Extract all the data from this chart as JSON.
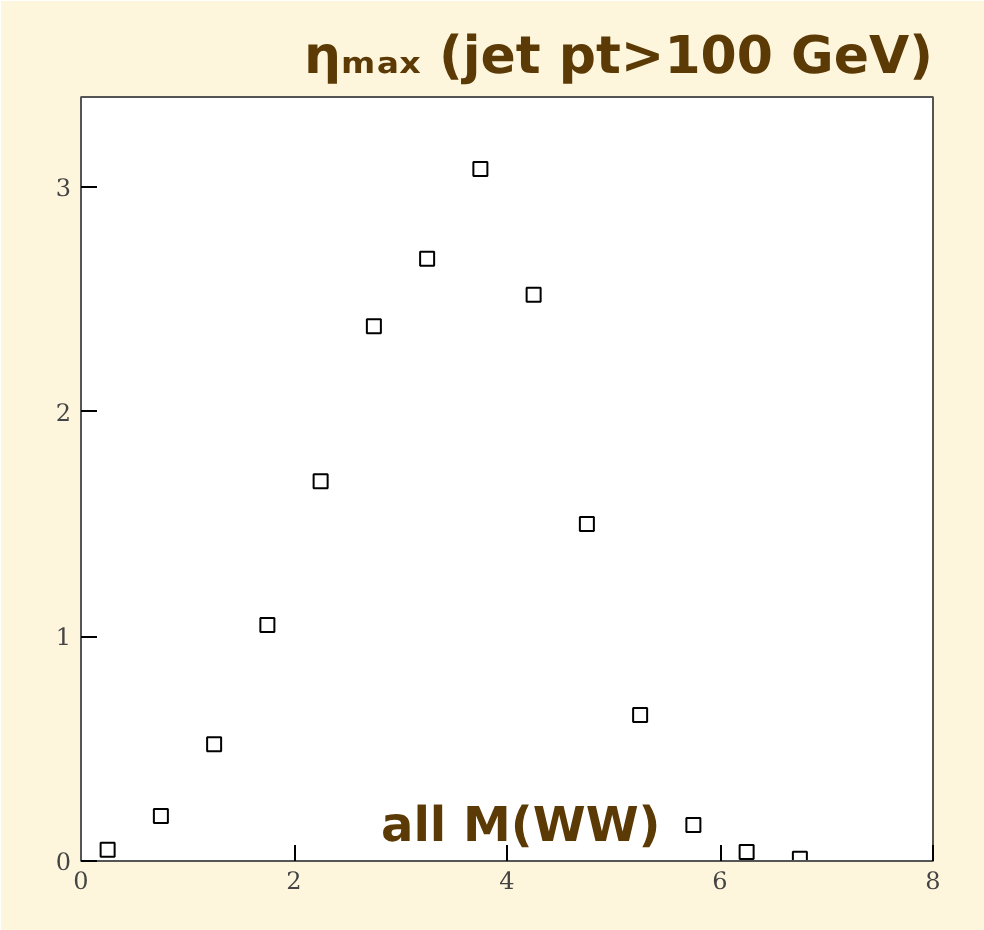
{
  "chart_data": {
    "type": "scatter",
    "title": "ηₘₐₓ (jet pt>100 GeV)",
    "annotations": [
      "all M(WW)"
    ],
    "x": [
      0.25,
      0.75,
      1.25,
      1.75,
      2.25,
      2.75,
      3.25,
      3.75,
      4.25,
      4.75,
      5.25,
      5.75,
      6.25,
      6.75
    ],
    "values": [
      0.05,
      0.2,
      0.52,
      1.05,
      1.69,
      2.38,
      2.68,
      3.08,
      2.52,
      1.5,
      0.65,
      0.16,
      0.04,
      0.01
    ],
    "color": "#000000",
    "marker": "square",
    "xlim": [
      0,
      8
    ],
    "xticks": [
      0,
      2,
      4,
      6,
      8
    ],
    "ylim": [
      0,
      3.4
    ],
    "yticks": [
      0,
      1,
      2,
      3
    ],
    "grid": false
  }
}
